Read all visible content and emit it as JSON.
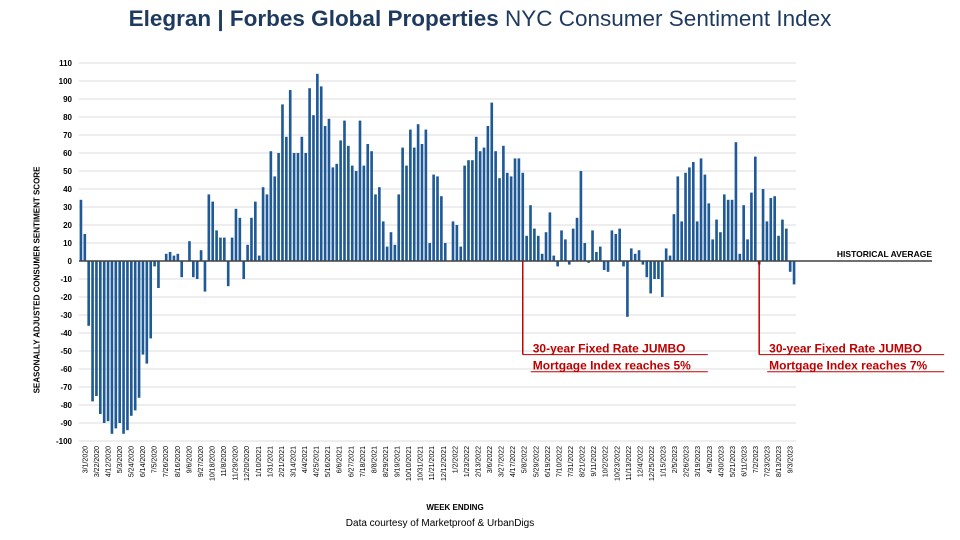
{
  "title_part1": "Elegran | Forbes Global Properties",
  "title_part2": "NYC Consumer Sentiment Index",
  "footer_credit": "Data courtesy of Marketproof & UrbanDigs",
  "colors": {
    "bar": "#1f5a96",
    "title": "#1f3a5f",
    "annotation": "#c00000",
    "grid": "#d0d0d0",
    "baseline": "#404040"
  },
  "chart_data": {
    "type": "bar",
    "title": "Elegran | Forbes Global Properties NYC Consumer Sentiment Index",
    "xlabel": "WEEK ENDING",
    "ylabel": "SEASONALLY ADJUSTED CONSUMER SENTIMENT SCORE",
    "ylim": [
      -100,
      110
    ],
    "yticks": [
      110,
      100,
      90,
      80,
      70,
      60,
      50,
      40,
      30,
      20,
      10,
      0,
      -10,
      -20,
      -30,
      -40,
      -50,
      -60,
      -70,
      -80,
      -90,
      -100
    ],
    "grid": true,
    "x_tick_labels": [
      "3/1/2020",
      "3/22/2020",
      "4/12/2020",
      "5/3/2020",
      "5/24/2020",
      "6/14/2020",
      "7/5/2020",
      "7/26/2020",
      "8/16/2020",
      "9/6/2020",
      "9/27/2020",
      "10/18/2020",
      "11/8/2020",
      "11/29/2020",
      "12/20/2020",
      "1/10/2021",
      "1/31/2021",
      "2/21/2021",
      "3/14/2021",
      "4/4/2021",
      "4/25/2021",
      "5/16/2021",
      "6/6/2021",
      "6/27/2021",
      "7/18/2021",
      "8/8/2021",
      "8/29/2021",
      "9/19/2021",
      "10/10/2021",
      "10/31/2021",
      "11/21/2021",
      "12/12/2021",
      "1/2/2022",
      "1/23/2022",
      "2/13/2022",
      "3/6/2022",
      "3/27/2022",
      "4/17/2022",
      "5/8/2022",
      "5/29/2022",
      "6/19/2022",
      "7/10/2022",
      "7/31/2022",
      "8/21/2022",
      "9/11/2022",
      "10/2/2022",
      "10/23/2022",
      "11/13/2022",
      "12/4/2022",
      "12/25/2022",
      "1/15/2023",
      "2/5/2023",
      "2/26/2023",
      "3/19/2023",
      "4/9/2023",
      "4/30/2023",
      "5/21/2023",
      "6/11/2023",
      "7/2/2023",
      "7/23/2023",
      "8/13/2023",
      "9/3/2023"
    ],
    "series": [
      {
        "values": [
          34,
          15,
          -36,
          -78,
          -75,
          -85,
          -90,
          -89,
          -96,
          -93,
          -90,
          -96,
          -94,
          -86,
          -83,
          -76,
          -52,
          -57,
          -43,
          -3,
          -15,
          0,
          4,
          5,
          3,
          4,
          -9,
          0,
          11,
          -9,
          -10,
          6,
          -17,
          37,
          33,
          17,
          13,
          13,
          -14,
          13,
          29,
          24,
          -10,
          9,
          24,
          33,
          3,
          41,
          37,
          61,
          47,
          60,
          87,
          69,
          95,
          60,
          60,
          69,
          60,
          96,
          81,
          104,
          97,
          75,
          79,
          52,
          54,
          67,
          78,
          64,
          53,
          50,
          78,
          53,
          65,
          61,
          37,
          41,
          22,
          8,
          16,
          9,
          37,
          63,
          53,
          73,
          63,
          76,
          65,
          73,
          10,
          48,
          47,
          36,
          10,
          0,
          22,
          20,
          8,
          53,
          56,
          56,
          69,
          61,
          63,
          75,
          88,
          61,
          46,
          64,
          49,
          47,
          57,
          57,
          49,
          14,
          31,
          18,
          14,
          4,
          16,
          27,
          3,
          -3,
          17,
          12,
          -2,
          18,
          24,
          50,
          10,
          -1,
          17,
          5,
          8,
          -5,
          -6,
          17,
          15,
          18,
          -3,
          -31,
          7,
          4,
          6,
          -2,
          -9,
          -18,
          -10,
          -10,
          -20,
          7,
          3,
          26,
          47,
          22,
          49,
          52,
          55,
          22,
          57,
          48,
          32,
          12,
          23,
          16,
          37,
          34,
          34,
          66,
          4,
          31,
          12,
          38,
          58,
          -2,
          40,
          22,
          35,
          36,
          14,
          23,
          18,
          -6,
          -13
        ]
      }
    ],
    "reference_line": {
      "label": "HISTORICAL AVERAGE",
      "value": 0
    },
    "annotations": [
      {
        "line1": "30-year Fixed Rate JUMBO",
        "line2": "Mortgage Index reaches 5%",
        "at_week": "5/8/2022"
      },
      {
        "line1": "30-year Fixed Rate JUMBO",
        "line2": "Mortgage Index reaches 7%",
        "at_week": "7/9/2023"
      }
    ]
  }
}
